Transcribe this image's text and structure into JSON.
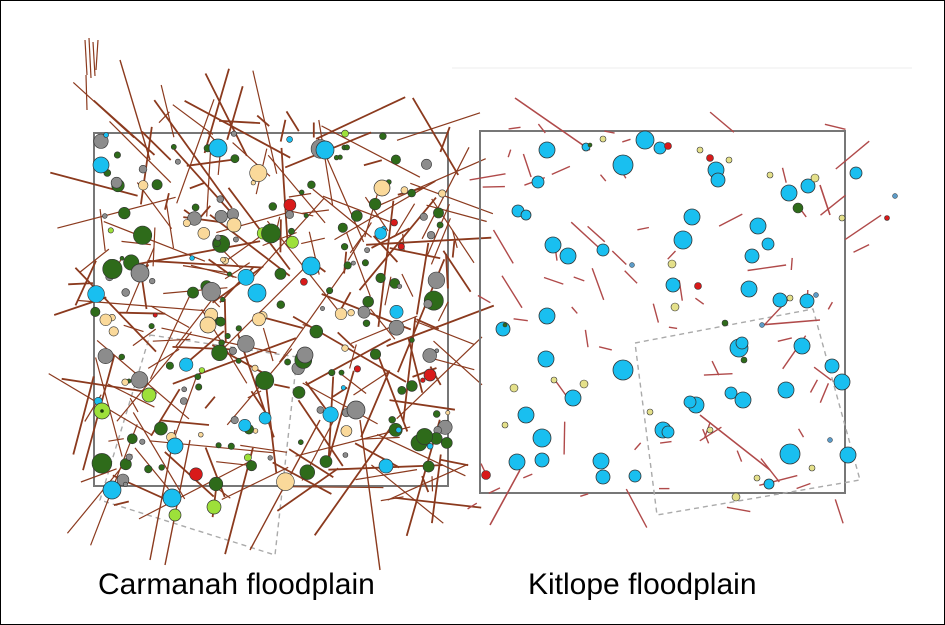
{
  "captions": {
    "left": "Carmanah floodplain",
    "right": "Kitlope floodplain"
  },
  "colors": {
    "frame": "#000000",
    "plot_border": "#777777",
    "dashed_subplot": "#aaaaaa",
    "log": "#8b3a1e",
    "dark_green": "#2e6b1a",
    "grey": "#8c8c8c",
    "sky_blue": "#19bff0",
    "pale_yellow": "#fad99a",
    "lime": "#9de03a",
    "red": "#d81a1a",
    "kitlope_log": "#b04a4a",
    "kitlope_pale": "#e4e08a"
  },
  "panels": [
    {
      "name": "Carmanah floodplain",
      "log_density": "high",
      "tree_colors": [
        "dark_green",
        "grey",
        "sky_blue",
        "pale_yellow",
        "lime",
        "red"
      ]
    },
    {
      "name": "Kitlope floodplain",
      "log_density": "low",
      "tree_colors": [
        "sky_blue",
        "kitlope_pale",
        "red",
        "dark_green"
      ]
    }
  ]
}
